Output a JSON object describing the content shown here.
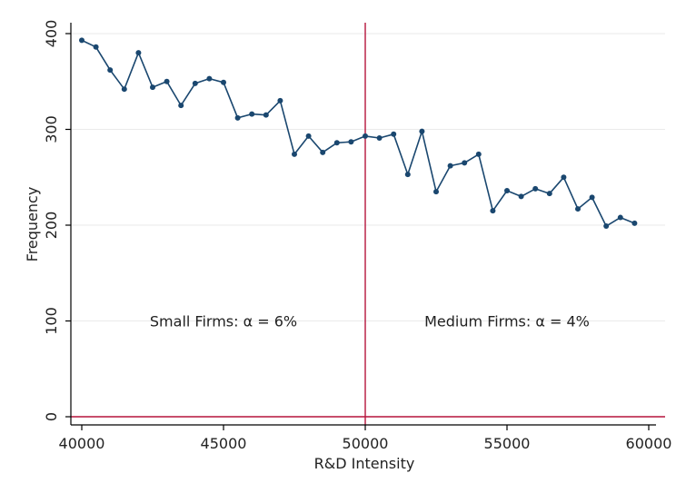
{
  "chart_data": {
    "type": "line",
    "title": "",
    "xlabel": "R&D Intensity",
    "ylabel": "Frequency",
    "xlim": [
      40000,
      60000
    ],
    "ylim": [
      0,
      400
    ],
    "x_ticks": [
      40000,
      45000,
      50000,
      55000,
      60000
    ],
    "x_tick_labels": [
      "40000",
      "45000",
      "50000",
      "55000",
      "60000"
    ],
    "y_ticks": [
      0,
      100,
      200,
      300,
      400
    ],
    "y_tick_labels": [
      "0",
      "100",
      "200",
      "300",
      "400"
    ],
    "grid": true,
    "threshold_x": 50000,
    "baseline_y": 0,
    "annotations": [
      {
        "text": "Small Firms: α = 6%",
        "x": 45000,
        "y": 100
      },
      {
        "text": "Medium Firms: α = 4%",
        "x": 55000,
        "y": 100
      }
    ],
    "series": [
      {
        "x": [
          40000,
          40500,
          41000,
          41500,
          42000,
          42500,
          43000,
          43500,
          44000,
          44500,
          45000,
          45500,
          46000,
          46500,
          47000,
          47500,
          48000,
          48500,
          49000,
          49500,
          50000,
          50500,
          51000,
          51500,
          52000,
          52500,
          53000,
          53500,
          54000,
          54500,
          55000,
          55500,
          56000,
          56500,
          57000,
          57500,
          58000,
          58500,
          59000,
          59500
        ],
        "values": [
          393,
          386,
          362,
          342,
          380,
          344,
          350,
          325,
          348,
          353,
          349,
          312,
          316,
          315,
          330,
          274,
          293,
          276,
          286,
          287,
          293,
          291,
          295,
          253,
          298,
          235,
          262,
          265,
          274,
          215,
          236,
          230,
          238,
          233,
          250,
          217,
          229,
          199,
          208,
          202
        ]
      }
    ],
    "colors": {
      "line": "#1a476f",
      "threshold": "#b5143c",
      "grid": "#eaeaea",
      "axis": "#000000"
    }
  }
}
